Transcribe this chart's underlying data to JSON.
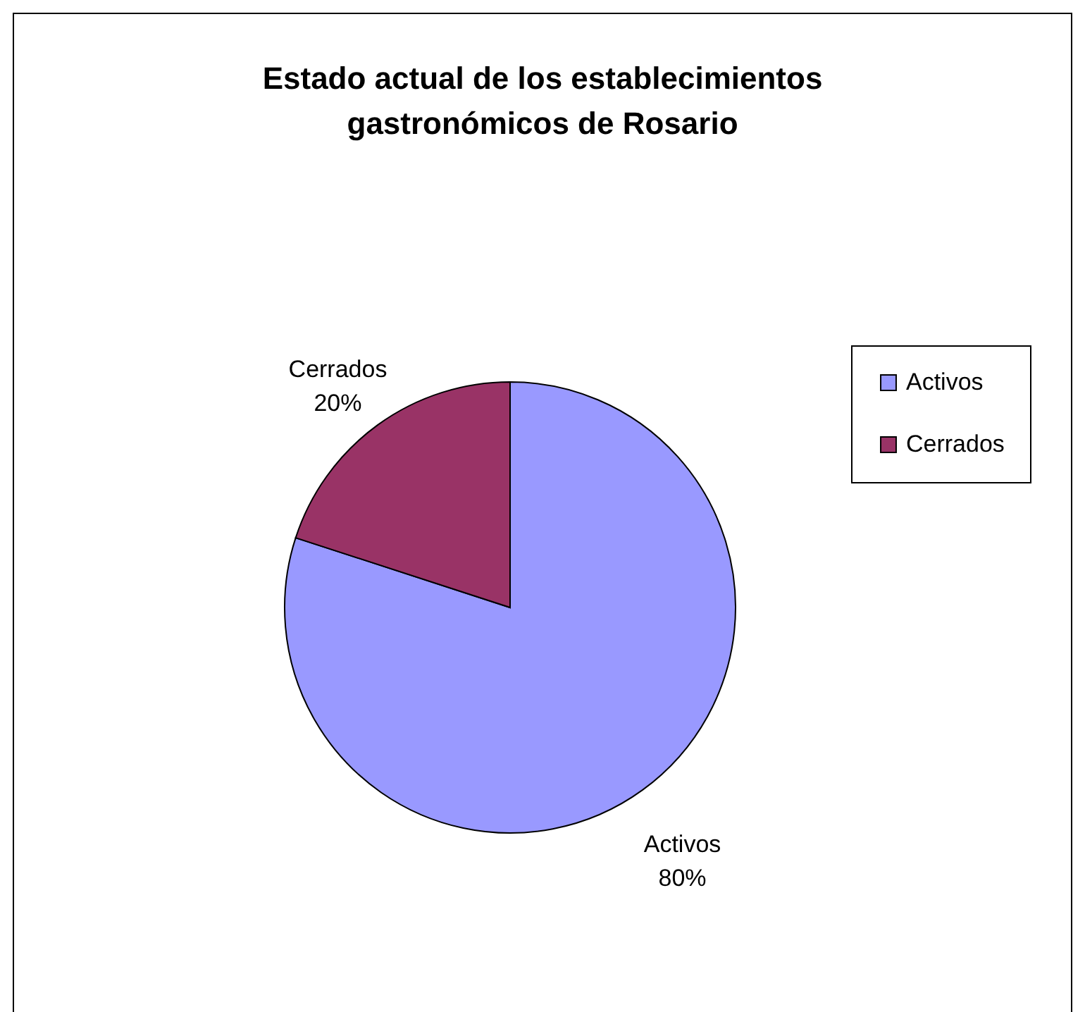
{
  "chart_data": {
    "type": "pie",
    "title": "Estado actual de los establecimientos gastronómicos de Rosario",
    "categories": [
      "Activos",
      "Cerrados"
    ],
    "values": [
      80,
      20
    ],
    "colors": [
      "#9999ff",
      "#993366"
    ],
    "value_labels": [
      "80%",
      "20%"
    ],
    "legend": "right"
  }
}
